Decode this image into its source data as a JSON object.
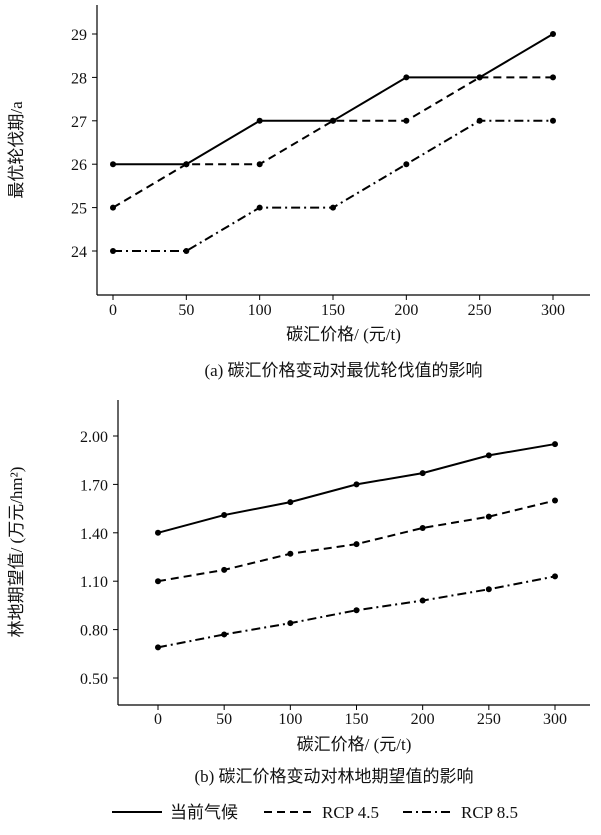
{
  "chart_data": [
    {
      "type": "line",
      "title": "(a) 碳汇价格变动对最优轮伐值的影响",
      "xlabel": "碳汇价格/ (元/t)",
      "ylabel": "最优轮伐期/a",
      "x": [
        0,
        50,
        100,
        150,
        200,
        250,
        300
      ],
      "xticks": [
        "0",
        "50",
        "100",
        "150",
        "200",
        "250",
        "300"
      ],
      "yticks": [
        "24",
        "25",
        "26",
        "27",
        "28",
        "29"
      ],
      "ytick_values": [
        24,
        25,
        26,
        27,
        28,
        29
      ],
      "ylim": [
        23.2,
        29.65
      ],
      "xlim": [
        -30,
        330
      ],
      "series": [
        {
          "name": "当前气候",
          "style": "solid",
          "values": [
            26,
            26,
            27,
            27,
            28,
            28,
            29
          ]
        },
        {
          "name": "RCP 4.5",
          "style": "dashed",
          "values": [
            25,
            26,
            26,
            27,
            27,
            28,
            28
          ]
        },
        {
          "name": "RCP 8.5",
          "style": "dashdot",
          "values": [
            24,
            24,
            25,
            25,
            26,
            27,
            27
          ]
        }
      ]
    },
    {
      "type": "line",
      "title": "(b) 碳汇价格变动对林地期望值的影响",
      "xlabel": "碳汇价格/ (元/t)",
      "ylabel": "林地期望值/ (万元/hm²)",
      "x": [
        0,
        50,
        100,
        150,
        200,
        250,
        300
      ],
      "xticks": [
        "0",
        "50",
        "100",
        "150",
        "200",
        "250",
        "300"
      ],
      "yticks": [
        "0.50",
        "0.80",
        "1.10",
        "1.40",
        "1.70",
        "2.00"
      ],
      "ytick_values": [
        0.5,
        0.8,
        1.1,
        1.4,
        1.7,
        2.0
      ],
      "ylim": [
        0.33,
        2.22
      ],
      "xlim": [
        -30,
        330
      ],
      "series": [
        {
          "name": "当前气候",
          "style": "solid",
          "values": [
            1.4,
            1.51,
            1.59,
            1.7,
            1.77,
            1.88,
            1.95
          ]
        },
        {
          "name": "RCP 4.5",
          "style": "dashed",
          "values": [
            1.1,
            1.17,
            1.27,
            1.33,
            1.43,
            1.5,
            1.6
          ]
        },
        {
          "name": "RCP 8.5",
          "style": "dashdot",
          "values": [
            0.69,
            0.77,
            0.84,
            0.92,
            0.98,
            1.05,
            1.13
          ]
        }
      ]
    }
  ],
  "legend": {
    "placement": "bottom",
    "items": [
      "当前气候",
      "RCP 4.5",
      "RCP 8.5"
    ]
  }
}
